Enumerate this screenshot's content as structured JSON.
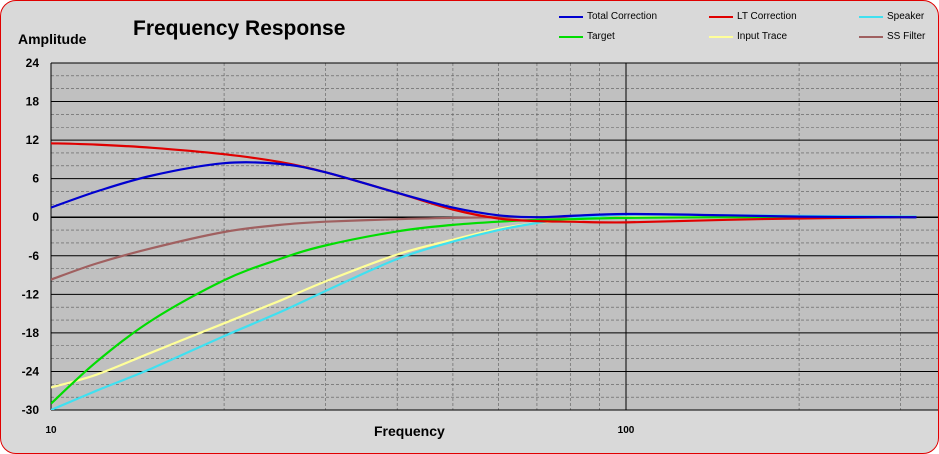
{
  "chart_data": {
    "type": "line",
    "title": "Frequency Response",
    "xlabel": "Frequency",
    "ylabel": "Amplitude",
    "x_scale": "log",
    "xlim": [
      10,
      320
    ],
    "ylim": [
      -30,
      24
    ],
    "y_ticks": [
      24,
      18,
      12,
      6,
      0,
      -6,
      -12,
      -18,
      -24,
      -30
    ],
    "x_tick_labels": [
      {
        "value": 10,
        "label": "10"
      },
      {
        "value": 100,
        "label": "100"
      }
    ],
    "grid": true,
    "legend_position": "top-right",
    "x": [
      10,
      12,
      15,
      20,
      25,
      30,
      40,
      50,
      60,
      70,
      80,
      100,
      150,
      200,
      300,
      320
    ],
    "series": [
      {
        "name": "Total Correction",
        "color": "#0000d0",
        "values": [
          1.5,
          4.0,
          6.5,
          8.4,
          8.3,
          7.0,
          3.8,
          1.5,
          0.3,
          0.0,
          0.2,
          0.5,
          0.3,
          0.1,
          0.0,
          0.0
        ]
      },
      {
        "name": "LT Correction",
        "color": "#e00000",
        "values": [
          11.5,
          11.3,
          10.8,
          9.8,
          8.6,
          7.0,
          3.8,
          1.2,
          -0.2,
          -0.6,
          -0.7,
          -0.8,
          -0.4,
          -0.2,
          0.0,
          0.0
        ]
      },
      {
        "name": "Speaker",
        "color": "#40e0f0",
        "values": [
          -30.0,
          -27.0,
          -23.5,
          -18.5,
          -14.8,
          -11.5,
          -6.5,
          -3.8,
          -2.0,
          -0.9,
          -0.2,
          0.4,
          0.3,
          0.2,
          0.1,
          0.1
        ]
      },
      {
        "name": "Target",
        "color": "#00dd00",
        "values": [
          -29.0,
          -22.5,
          -16.0,
          -9.8,
          -6.5,
          -4.4,
          -2.2,
          -1.2,
          -0.7,
          -0.4,
          -0.3,
          -0.1,
          0.0,
          0.0,
          0.0,
          0.0
        ]
      },
      {
        "name": "Input Trace",
        "color": "#ffff99",
        "values": [
          -26.5,
          -24.5,
          -21.0,
          -16.5,
          -13.0,
          -10.0,
          -5.8,
          -3.5,
          -1.8,
          -0.9,
          -0.4,
          0.0,
          0.0,
          0.0,
          0.0,
          0.0
        ]
      },
      {
        "name": "SS Filter",
        "color": "#a06060",
        "values": [
          -9.7,
          -7.2,
          -4.8,
          -2.3,
          -1.2,
          -0.7,
          -0.3,
          -0.1,
          0.0,
          0.0,
          0.0,
          0.0,
          0.0,
          0.0,
          0.0,
          0.0
        ]
      }
    ]
  }
}
